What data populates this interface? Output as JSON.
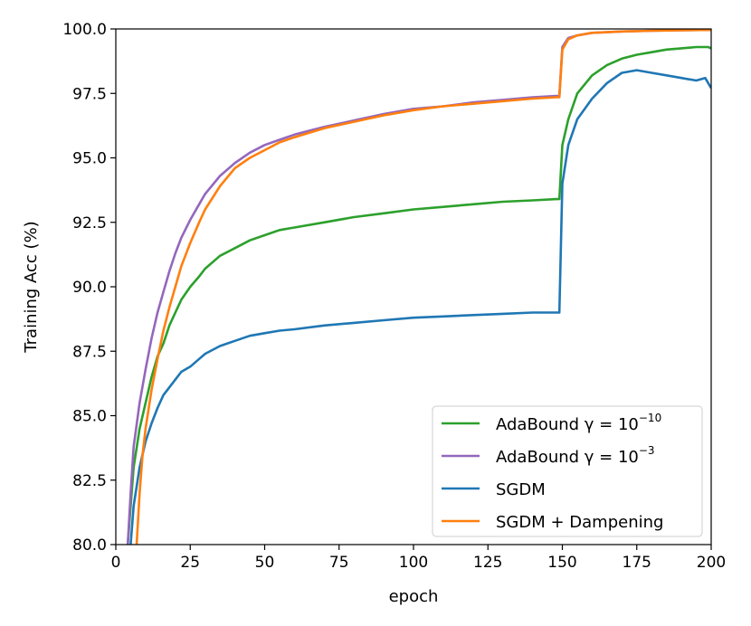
{
  "chart_data": {
    "type": "line",
    "xlabel": "epoch",
    "ylabel": "Training Acc (%)",
    "xlim": [
      0,
      200
    ],
    "ylim": [
      80.0,
      100.0
    ],
    "xticks": [
      "0",
      "25",
      "50",
      "75",
      "100",
      "125",
      "150",
      "175",
      "200"
    ],
    "yticks": [
      "80.0",
      "82.5",
      "85.0",
      "87.5",
      "90.0",
      "92.5",
      "95.0",
      "97.5",
      "100.0"
    ],
    "grid": false,
    "legend_position": "lower-right",
    "series": [
      {
        "name": "AdaBound γ = 10⁻¹⁰",
        "legend_base": "AdaBound γ = 10",
        "legend_exp": "−10",
        "color": "#2ca02c",
        "points": [
          [
            4,
            80.0
          ],
          [
            5,
            81.5
          ],
          [
            6,
            83.0
          ],
          [
            8,
            84.5
          ],
          [
            10,
            85.5
          ],
          [
            12,
            86.5
          ],
          [
            14,
            87.3
          ],
          [
            16,
            87.8
          ],
          [
            18,
            88.5
          ],
          [
            20,
            89.0
          ],
          [
            22,
            89.5
          ],
          [
            25,
            90.0
          ],
          [
            28,
            90.4
          ],
          [
            30,
            90.7
          ],
          [
            35,
            91.2
          ],
          [
            40,
            91.5
          ],
          [
            45,
            91.8
          ],
          [
            50,
            92.0
          ],
          [
            55,
            92.2
          ],
          [
            60,
            92.3
          ],
          [
            70,
            92.5
          ],
          [
            80,
            92.7
          ],
          [
            90,
            92.85
          ],
          [
            100,
            93.0
          ],
          [
            110,
            93.1
          ],
          [
            120,
            93.2
          ],
          [
            130,
            93.3
          ],
          [
            140,
            93.35
          ],
          [
            148,
            93.4
          ],
          [
            149,
            93.4
          ],
          [
            150,
            95.5
          ],
          [
            152,
            96.5
          ],
          [
            155,
            97.5
          ],
          [
            160,
            98.2
          ],
          [
            165,
            98.6
          ],
          [
            170,
            98.85
          ],
          [
            175,
            99.0
          ],
          [
            180,
            99.1
          ],
          [
            185,
            99.2
          ],
          [
            190,
            99.25
          ],
          [
            195,
            99.3
          ],
          [
            199,
            99.3
          ],
          [
            200,
            99.25
          ]
        ]
      },
      {
        "name": "AdaBound γ = 10⁻³",
        "legend_base": "AdaBound γ = 10",
        "legend_exp": "−3",
        "color": "#9467bd",
        "points": [
          [
            4,
            80.0
          ],
          [
            5,
            82.0
          ],
          [
            6,
            83.8
          ],
          [
            8,
            85.5
          ],
          [
            10,
            86.8
          ],
          [
            12,
            88.0
          ],
          [
            14,
            89.0
          ],
          [
            16,
            89.8
          ],
          [
            18,
            90.6
          ],
          [
            20,
            91.3
          ],
          [
            22,
            91.9
          ],
          [
            25,
            92.6
          ],
          [
            28,
            93.2
          ],
          [
            30,
            93.6
          ],
          [
            35,
            94.3
          ],
          [
            40,
            94.8
          ],
          [
            45,
            95.2
          ],
          [
            50,
            95.5
          ],
          [
            55,
            95.7
          ],
          [
            60,
            95.9
          ],
          [
            70,
            96.2
          ],
          [
            80,
            96.45
          ],
          [
            90,
            96.7
          ],
          [
            100,
            96.9
          ],
          [
            110,
            97.0
          ],
          [
            120,
            97.15
          ],
          [
            130,
            97.25
          ],
          [
            140,
            97.35
          ],
          [
            148,
            97.4
          ],
          [
            149,
            97.4
          ],
          [
            150,
            99.3
          ],
          [
            152,
            99.65
          ],
          [
            155,
            99.75
          ],
          [
            160,
            99.85
          ],
          [
            170,
            99.9
          ],
          [
            180,
            99.93
          ],
          [
            190,
            99.95
          ],
          [
            200,
            99.96
          ]
        ]
      },
      {
        "name": "SGDM",
        "legend_base": "SGDM",
        "legend_exp": "",
        "color": "#1f77b4",
        "points": [
          [
            5,
            80.0
          ],
          [
            6,
            81.5
          ],
          [
            8,
            83.0
          ],
          [
            10,
            84.0
          ],
          [
            12,
            84.7
          ],
          [
            14,
            85.3
          ],
          [
            16,
            85.8
          ],
          [
            18,
            86.1
          ],
          [
            20,
            86.4
          ],
          [
            22,
            86.7
          ],
          [
            25,
            86.9
          ],
          [
            28,
            87.2
          ],
          [
            30,
            87.4
          ],
          [
            35,
            87.7
          ],
          [
            40,
            87.9
          ],
          [
            45,
            88.1
          ],
          [
            50,
            88.2
          ],
          [
            55,
            88.3
          ],
          [
            60,
            88.35
          ],
          [
            70,
            88.5
          ],
          [
            80,
            88.6
          ],
          [
            90,
            88.7
          ],
          [
            100,
            88.8
          ],
          [
            110,
            88.85
          ],
          [
            120,
            88.9
          ],
          [
            130,
            88.95
          ],
          [
            140,
            89.0
          ],
          [
            148,
            89.0
          ],
          [
            149,
            89.0
          ],
          [
            150,
            94.0
          ],
          [
            152,
            95.5
          ],
          [
            155,
            96.5
          ],
          [
            160,
            97.3
          ],
          [
            165,
            97.9
          ],
          [
            170,
            98.3
          ],
          [
            175,
            98.4
          ],
          [
            180,
            98.3
          ],
          [
            185,
            98.2
          ],
          [
            190,
            98.1
          ],
          [
            195,
            98.0
          ],
          [
            198,
            98.1
          ],
          [
            199,
            97.9
          ],
          [
            200,
            97.7
          ]
        ]
      },
      {
        "name": "SGDM + Dampening",
        "legend_base": "SGDM + Dampening",
        "legend_exp": "",
        "color": "#ff7f0e",
        "points": [
          [
            7,
            80.0
          ],
          [
            8,
            82.0
          ],
          [
            9,
            83.5
          ],
          [
            10,
            84.5
          ],
          [
            12,
            86.0
          ],
          [
            14,
            87.2
          ],
          [
            16,
            88.3
          ],
          [
            18,
            89.2
          ],
          [
            20,
            90.0
          ],
          [
            22,
            90.8
          ],
          [
            25,
            91.7
          ],
          [
            28,
            92.5
          ],
          [
            30,
            93.0
          ],
          [
            35,
            93.9
          ],
          [
            40,
            94.6
          ],
          [
            45,
            95.0
          ],
          [
            50,
            95.3
          ],
          [
            55,
            95.6
          ],
          [
            60,
            95.8
          ],
          [
            70,
            96.15
          ],
          [
            80,
            96.4
          ],
          [
            90,
            96.65
          ],
          [
            100,
            96.85
          ],
          [
            110,
            97.0
          ],
          [
            120,
            97.1
          ],
          [
            130,
            97.2
          ],
          [
            140,
            97.3
          ],
          [
            148,
            97.35
          ],
          [
            149,
            97.35
          ],
          [
            150,
            99.2
          ],
          [
            152,
            99.6
          ],
          [
            155,
            99.75
          ],
          [
            160,
            99.85
          ],
          [
            170,
            99.9
          ],
          [
            180,
            99.93
          ],
          [
            190,
            99.95
          ],
          [
            200,
            99.96
          ]
        ]
      }
    ]
  }
}
